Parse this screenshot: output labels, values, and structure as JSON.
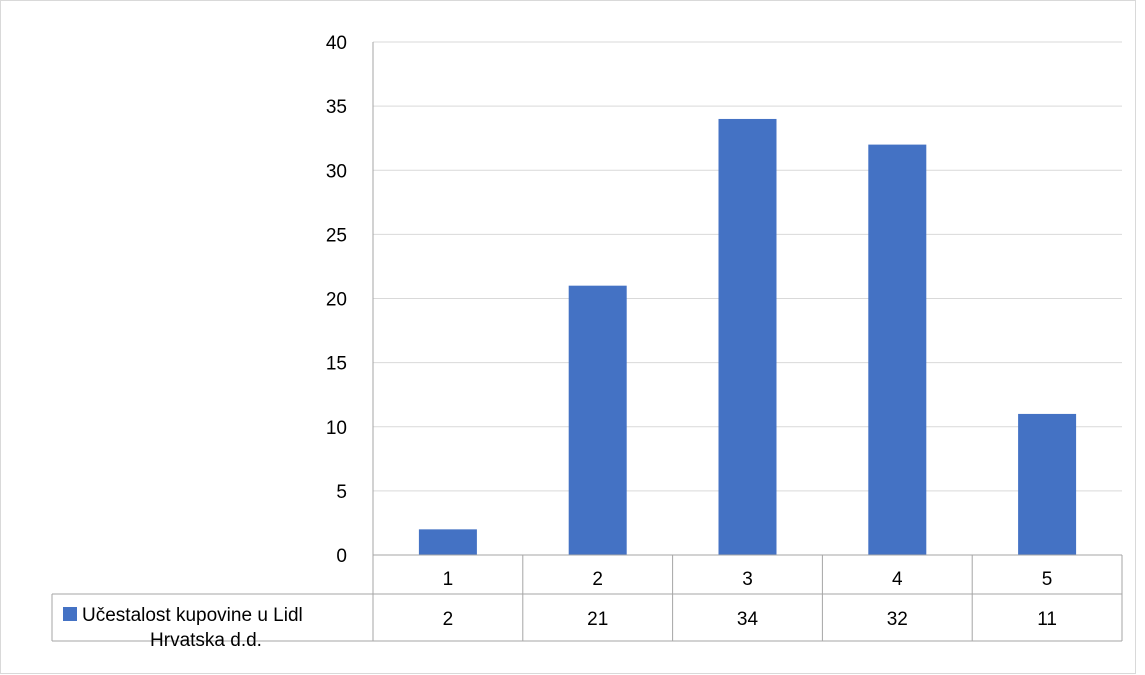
{
  "chart_data": {
    "type": "bar",
    "title": "",
    "xlabel": "",
    "ylabel": "",
    "categories": [
      "1",
      "2",
      "3",
      "4",
      "5"
    ],
    "series": [
      {
        "name": "Učestalost kupovine u Lidl Hrvatska d.d.",
        "name_lines": [
          "Učestalost kupovine u Lidl",
          "Hrvatska d.d."
        ],
        "values": [
          2,
          21,
          34,
          32,
          11
        ],
        "color": "#4472C4"
      }
    ],
    "ylim": [
      0,
      40
    ],
    "yticks": [
      0,
      5,
      10,
      15,
      20,
      25,
      30,
      35,
      40
    ],
    "grid": true,
    "legend": "data-table",
    "data_table": true
  }
}
